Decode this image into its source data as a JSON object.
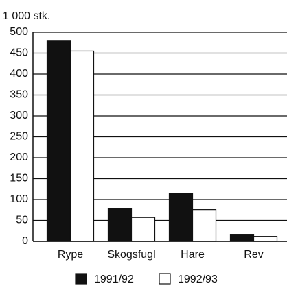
{
  "chart_data": {
    "type": "bar",
    "y_label": "1 000 stk.",
    "categories": [
      "Rype",
      "Skogsfugl",
      "Hare",
      "Rev"
    ],
    "series": [
      {
        "name": "1991/92",
        "color": "#111111",
        "values": [
          479,
          78,
          115,
          17
        ]
      },
      {
        "name": "1992/93",
        "color": "#ffffff",
        "values": [
          455,
          57,
          76,
          12
        ]
      }
    ],
    "ylim": [
      0,
      500
    ],
    "yticks": [
      0,
      50,
      100,
      150,
      200,
      250,
      300,
      350,
      400,
      450,
      500
    ],
    "grid": true,
    "legend": "bottom"
  }
}
